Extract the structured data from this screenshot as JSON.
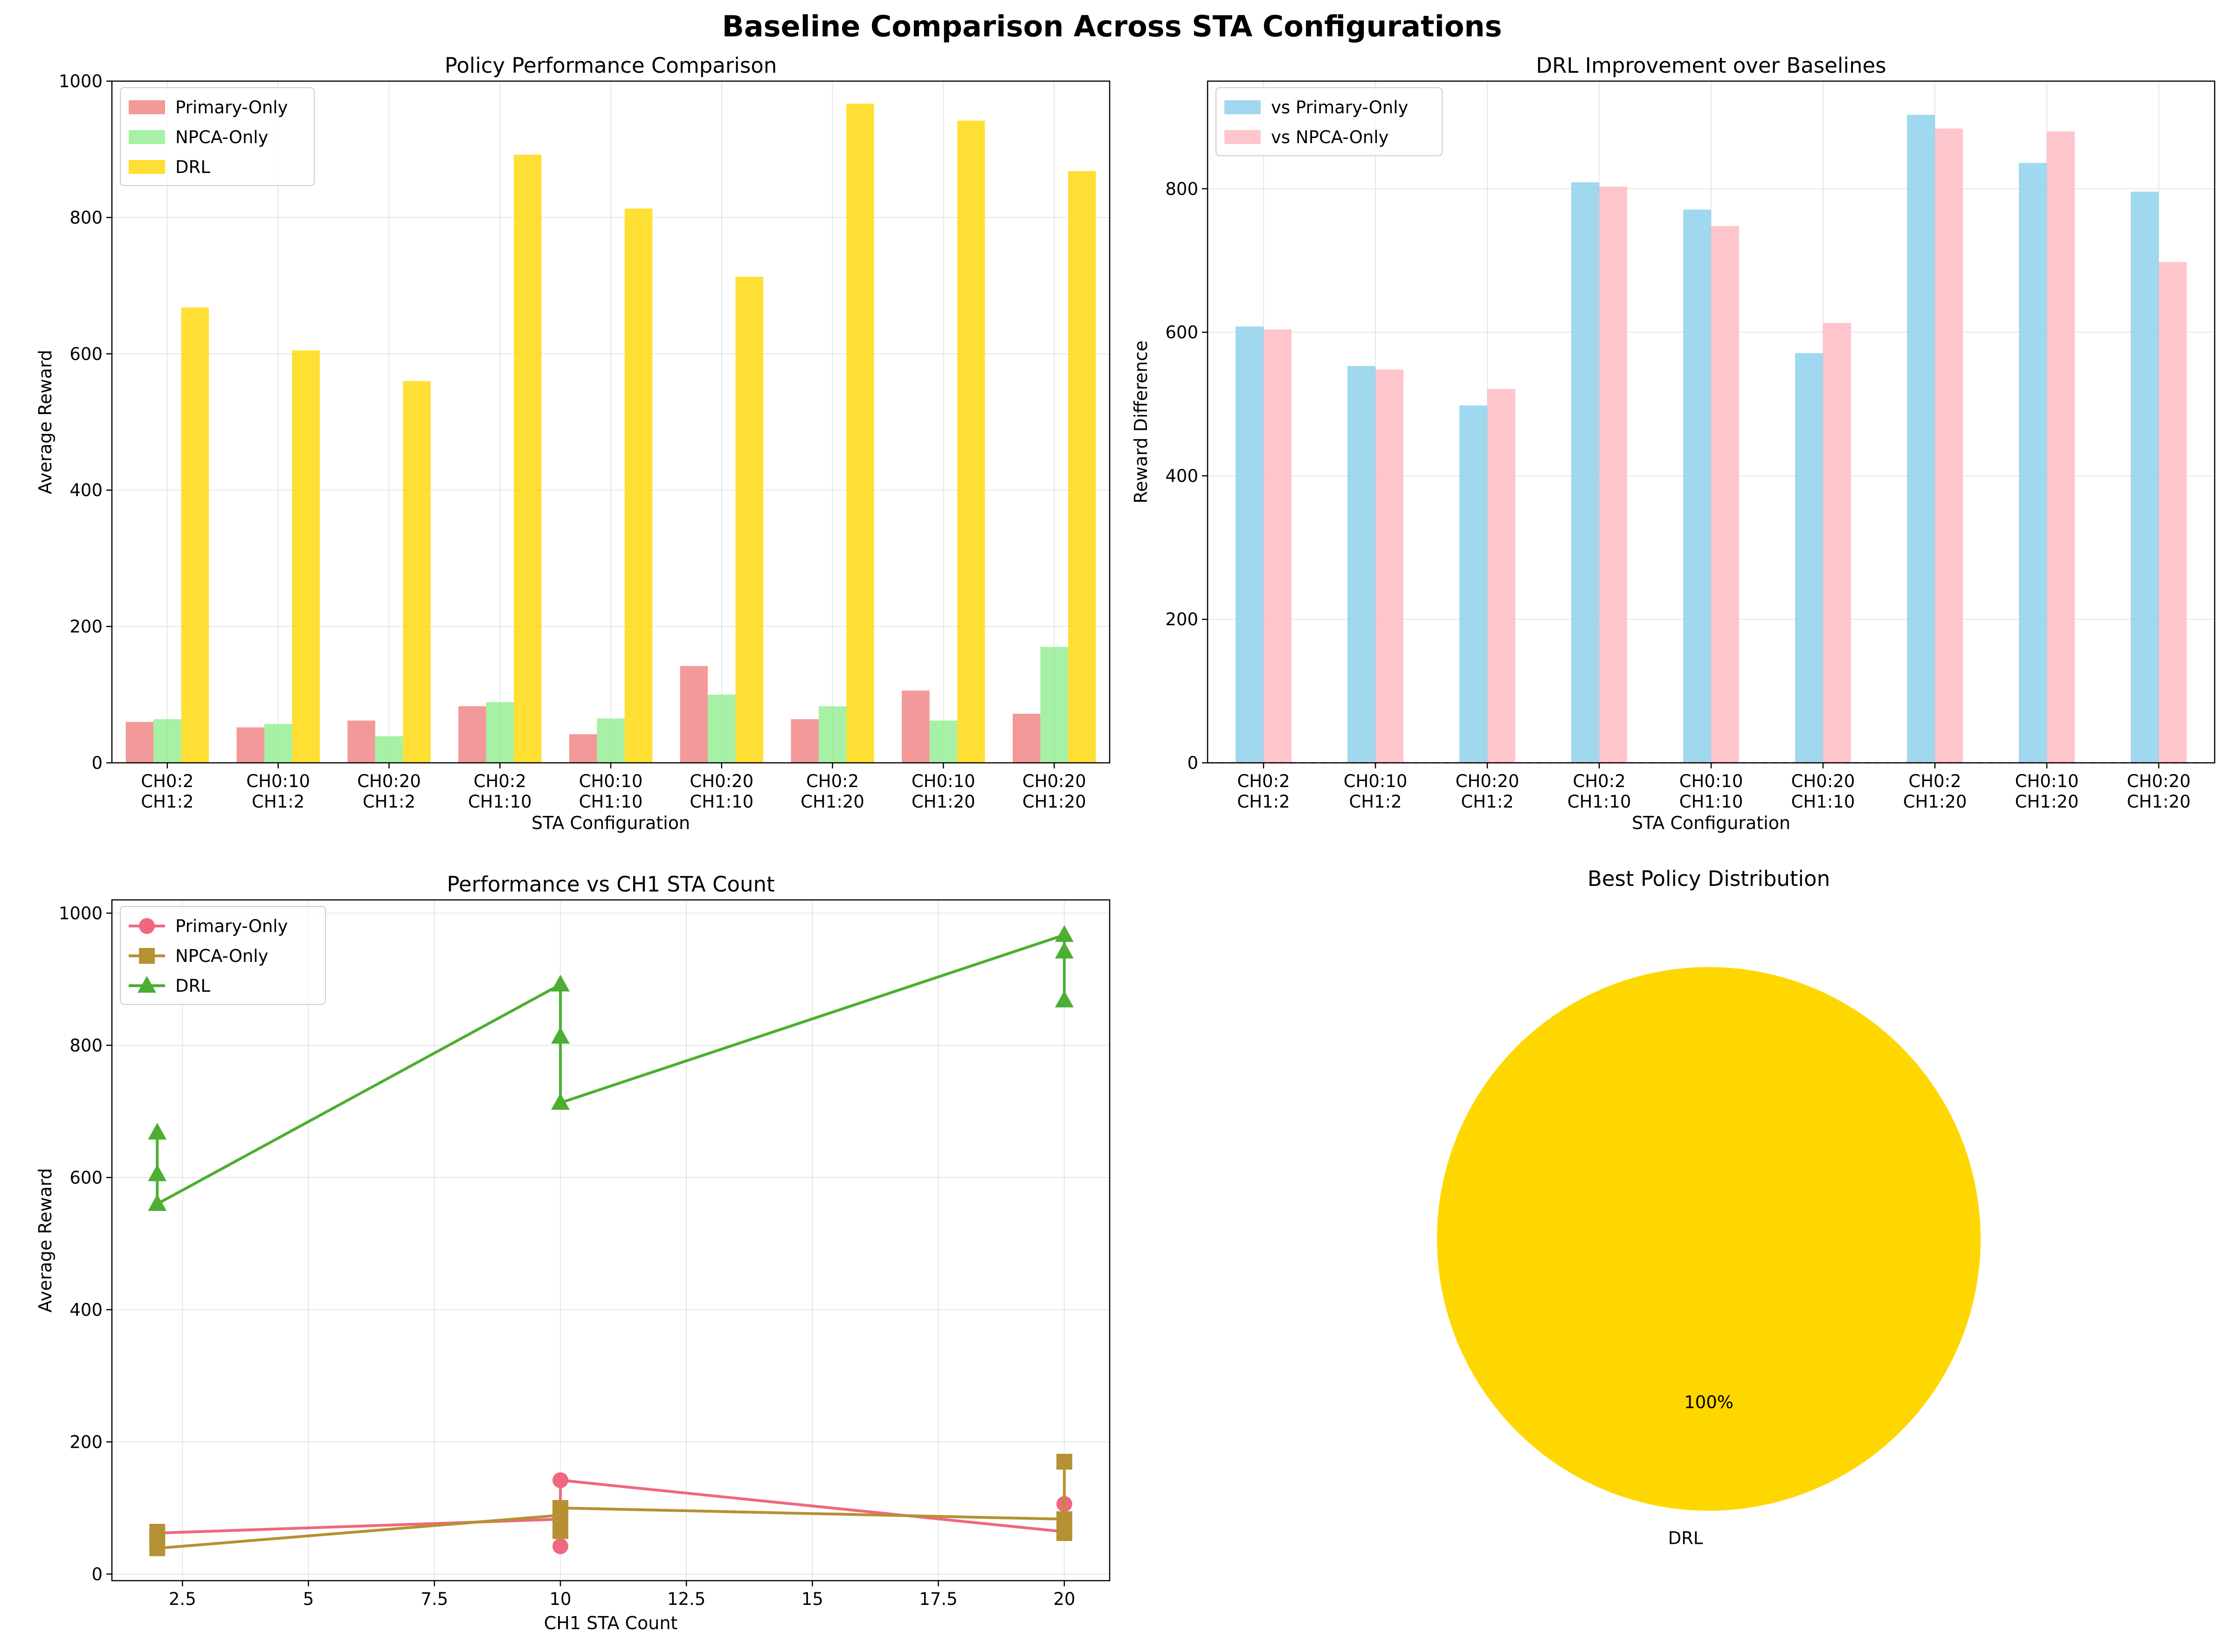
{
  "figure": {
    "title": "Baseline Comparison Across STA Configurations"
  },
  "chart_data": [
    {
      "type": "bar",
      "title": "Policy Performance Comparison",
      "xlabel": "STA Configuration",
      "ylabel": "Average Reward",
      "ylim": [
        0,
        1000
      ],
      "yticks": [
        0,
        200,
        400,
        600,
        800,
        1000
      ],
      "categories": [
        [
          "CH0:2",
          "CH1:2"
        ],
        [
          "CH0:10",
          "CH1:2"
        ],
        [
          "CH0:20",
          "CH1:2"
        ],
        [
          "CH0:2",
          "CH1:10"
        ],
        [
          "CH0:10",
          "CH1:10"
        ],
        [
          "CH0:20",
          "CH1:10"
        ],
        [
          "CH0:2",
          "CH1:20"
        ],
        [
          "CH0:10",
          "CH1:20"
        ],
        [
          "CH0:20",
          "CH1:20"
        ]
      ],
      "series": [
        {
          "name": "Primary-Only",
          "color": "#f08080",
          "values": [
            60,
            52,
            62,
            83,
            42,
            142,
            64,
            106,
            72
          ]
        },
        {
          "name": "NPCA-Only",
          "color": "#90ee90",
          "values": [
            64,
            57,
            39,
            89,
            65,
            100,
            83,
            62,
            170
          ]
        },
        {
          "name": "DRL",
          "color": "#ffd700",
          "values": [
            668,
            605,
            560,
            892,
            813,
            713,
            967,
            942,
            868
          ]
        }
      ],
      "grid": true,
      "legend": "upper-left"
    },
    {
      "type": "bar",
      "title": "DRL Improvement over Baselines",
      "xlabel": "STA Configuration",
      "ylabel": "Reward Difference",
      "ylim": [
        0,
        950
      ],
      "yticks": [
        0,
        200,
        400,
        600,
        800
      ],
      "categories": [
        [
          "CH0:2",
          "CH1:2"
        ],
        [
          "CH0:10",
          "CH1:2"
        ],
        [
          "CH0:20",
          "CH1:2"
        ],
        [
          "CH0:2",
          "CH1:10"
        ],
        [
          "CH0:10",
          "CH1:10"
        ],
        [
          "CH0:20",
          "CH1:10"
        ],
        [
          "CH0:2",
          "CH1:20"
        ],
        [
          "CH0:10",
          "CH1:20"
        ],
        [
          "CH0:20",
          "CH1:20"
        ]
      ],
      "series": [
        {
          "name": "vs Primary-Only",
          "color": "#87ceeb",
          "values": [
            608,
            553,
            498,
            809,
            771,
            571,
            903,
            836,
            796
          ]
        },
        {
          "name": "vs NPCA-Only",
          "color": "#ffb6c1",
          "values": [
            604,
            548,
            521,
            803,
            748,
            613,
            884,
            880,
            698
          ]
        }
      ],
      "reference_line": {
        "y": 0,
        "color": "#d9534f",
        "style": "dashed"
      },
      "grid": true,
      "legend": "upper-left"
    },
    {
      "type": "line",
      "title": "Performance vs CH1 STA Count",
      "xlabel": "CH1 STA Count",
      "ylabel": "Average Reward",
      "xlim": [
        1.1,
        20.9
      ],
      "ylim": [
        -10,
        1020
      ],
      "xticks": [
        2.5,
        5.0,
        7.5,
        10.0,
        12.5,
        15.0,
        17.5,
        20.0
      ],
      "yticks": [
        0,
        200,
        400,
        600,
        800,
        1000
      ],
      "x": [
        2,
        2,
        2,
        10,
        10,
        10,
        20,
        20,
        20
      ],
      "series": [
        {
          "name": "Primary-Only",
          "color": "#f0677f",
          "marker": "circle",
          "values": [
            60,
            52,
            62,
            83,
            42,
            142,
            64,
            106,
            72
          ]
        },
        {
          "name": "NPCA-Only",
          "color": "#b59134",
          "marker": "square",
          "values": [
            64,
            57,
            39,
            89,
            65,
            100,
            83,
            62,
            170
          ]
        },
        {
          "name": "DRL",
          "color": "#4cae32",
          "marker": "triangle",
          "values": [
            668,
            605,
            560,
            892,
            813,
            713,
            967,
            942,
            868
          ]
        }
      ],
      "grid": true,
      "legend": "upper-left"
    },
    {
      "type": "pie",
      "title": "Best Policy Distribution",
      "labels": [
        "DRL"
      ],
      "values": [
        100
      ],
      "pct_labels": [
        "100%"
      ],
      "colors": [
        "#ffd700"
      ]
    }
  ]
}
